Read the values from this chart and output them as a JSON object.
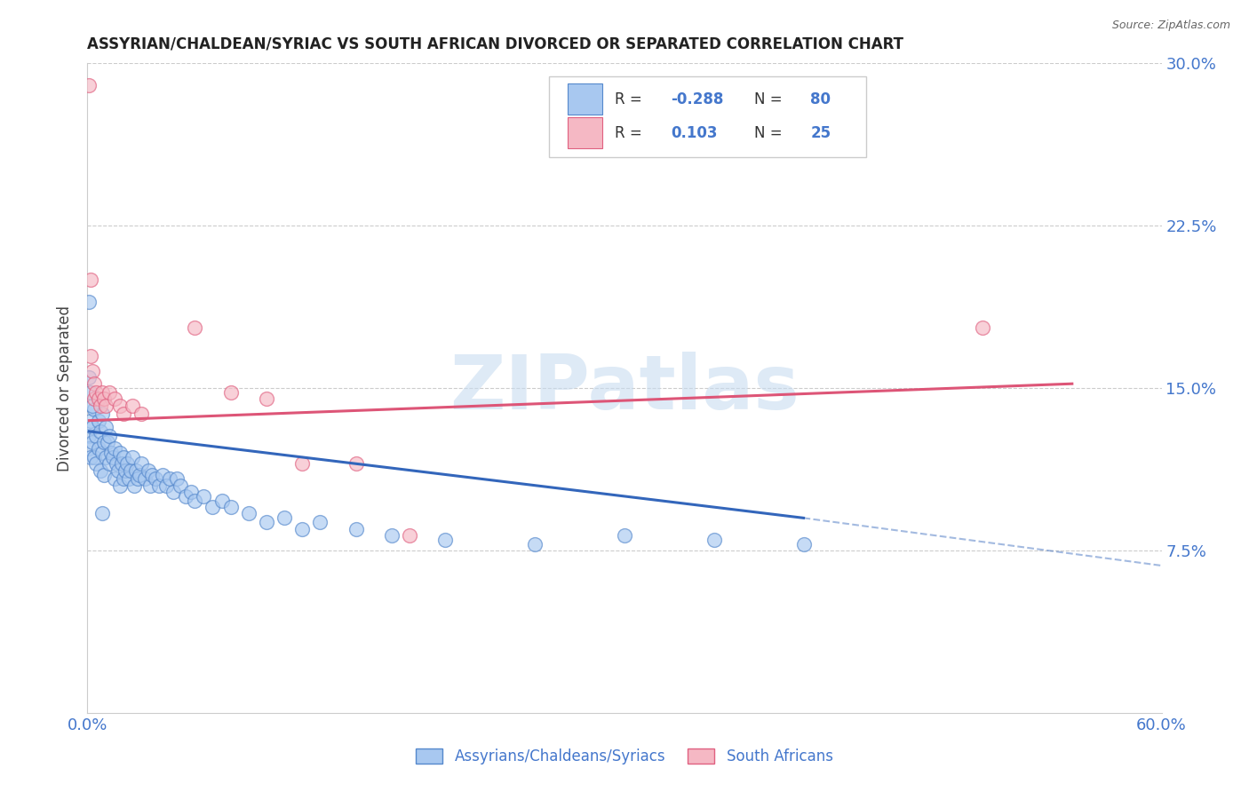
{
  "title": "ASSYRIAN/CHALDEAN/SYRIAC VS SOUTH AFRICAN DIVORCED OR SEPARATED CORRELATION CHART",
  "source": "Source: ZipAtlas.com",
  "ylabel": "Divorced or Separated",
  "xlim": [
    0.0,
    0.6
  ],
  "ylim": [
    0.0,
    0.3
  ],
  "xtick_vals": [
    0.0,
    0.6
  ],
  "xtick_labels": [
    "0.0%",
    "60.0%"
  ],
  "ytick_vals": [
    0.075,
    0.15,
    0.225,
    0.3
  ],
  "ytick_labels": [
    "7.5%",
    "15.0%",
    "22.5%",
    "30.0%"
  ],
  "legend_R1": "-0.288",
  "legend_N1": "80",
  "legend_R2": "0.103",
  "legend_N2": "25",
  "legend_label1": "Assyrians/Chaldeans/Syriacs",
  "legend_label2": "South Africans",
  "blue_color": "#A8C8F0",
  "pink_color": "#F5B8C4",
  "blue_edge_color": "#5588CC",
  "pink_edge_color": "#E06080",
  "blue_line_color": "#3366BB",
  "pink_line_color": "#DD5577",
  "watermark": "ZIPatlas",
  "blue_scatter": [
    [
      0.001,
      0.128
    ],
    [
      0.001,
      0.122
    ],
    [
      0.002,
      0.135
    ],
    [
      0.002,
      0.118
    ],
    [
      0.003,
      0.132
    ],
    [
      0.003,
      0.125
    ],
    [
      0.004,
      0.14
    ],
    [
      0.004,
      0.118
    ],
    [
      0.005,
      0.128
    ],
    [
      0.005,
      0.115
    ],
    [
      0.006,
      0.135
    ],
    [
      0.006,
      0.122
    ],
    [
      0.007,
      0.13
    ],
    [
      0.007,
      0.112
    ],
    [
      0.008,
      0.138
    ],
    [
      0.008,
      0.12
    ],
    [
      0.009,
      0.125
    ],
    [
      0.009,
      0.11
    ],
    [
      0.01,
      0.132
    ],
    [
      0.01,
      0.118
    ],
    [
      0.011,
      0.125
    ],
    [
      0.012,
      0.128
    ],
    [
      0.012,
      0.115
    ],
    [
      0.013,
      0.12
    ],
    [
      0.014,
      0.118
    ],
    [
      0.015,
      0.122
    ],
    [
      0.015,
      0.108
    ],
    [
      0.016,
      0.115
    ],
    [
      0.017,
      0.112
    ],
    [
      0.018,
      0.12
    ],
    [
      0.018,
      0.105
    ],
    [
      0.019,
      0.115
    ],
    [
      0.02,
      0.118
    ],
    [
      0.02,
      0.108
    ],
    [
      0.021,
      0.112
    ],
    [
      0.022,
      0.115
    ],
    [
      0.023,
      0.108
    ],
    [
      0.024,
      0.112
    ],
    [
      0.025,
      0.118
    ],
    [
      0.026,
      0.105
    ],
    [
      0.027,
      0.112
    ],
    [
      0.028,
      0.108
    ],
    [
      0.029,
      0.11
    ],
    [
      0.03,
      0.115
    ],
    [
      0.032,
      0.108
    ],
    [
      0.034,
      0.112
    ],
    [
      0.035,
      0.105
    ],
    [
      0.036,
      0.11
    ],
    [
      0.038,
      0.108
    ],
    [
      0.04,
      0.105
    ],
    [
      0.042,
      0.11
    ],
    [
      0.044,
      0.105
    ],
    [
      0.046,
      0.108
    ],
    [
      0.048,
      0.102
    ],
    [
      0.05,
      0.108
    ],
    [
      0.052,
      0.105
    ],
    [
      0.055,
      0.1
    ],
    [
      0.058,
      0.102
    ],
    [
      0.06,
      0.098
    ],
    [
      0.065,
      0.1
    ],
    [
      0.07,
      0.095
    ],
    [
      0.075,
      0.098
    ],
    [
      0.08,
      0.095
    ],
    [
      0.09,
      0.092
    ],
    [
      0.1,
      0.088
    ],
    [
      0.11,
      0.09
    ],
    [
      0.12,
      0.085
    ],
    [
      0.13,
      0.088
    ],
    [
      0.15,
      0.085
    ],
    [
      0.17,
      0.082
    ],
    [
      0.2,
      0.08
    ],
    [
      0.25,
      0.078
    ],
    [
      0.3,
      0.082
    ],
    [
      0.35,
      0.08
    ],
    [
      0.4,
      0.078
    ],
    [
      0.001,
      0.19
    ],
    [
      0.001,
      0.155
    ],
    [
      0.002,
      0.148
    ],
    [
      0.003,
      0.142
    ],
    [
      0.008,
      0.092
    ]
  ],
  "pink_scatter": [
    [
      0.001,
      0.29
    ],
    [
      0.002,
      0.2
    ],
    [
      0.002,
      0.165
    ],
    [
      0.003,
      0.158
    ],
    [
      0.004,
      0.152
    ],
    [
      0.004,
      0.145
    ],
    [
      0.005,
      0.148
    ],
    [
      0.006,
      0.145
    ],
    [
      0.007,
      0.142
    ],
    [
      0.008,
      0.148
    ],
    [
      0.009,
      0.145
    ],
    [
      0.01,
      0.142
    ],
    [
      0.012,
      0.148
    ],
    [
      0.015,
      0.145
    ],
    [
      0.018,
      0.142
    ],
    [
      0.02,
      0.138
    ],
    [
      0.025,
      0.142
    ],
    [
      0.03,
      0.138
    ],
    [
      0.06,
      0.178
    ],
    [
      0.08,
      0.148
    ],
    [
      0.1,
      0.145
    ],
    [
      0.12,
      0.115
    ],
    [
      0.15,
      0.115
    ],
    [
      0.18,
      0.082
    ],
    [
      0.5,
      0.178
    ]
  ],
  "blue_trend": [
    0.001,
    0.13,
    0.4,
    0.09
  ],
  "blue_dash": [
    0.4,
    0.09,
    0.6,
    0.068
  ],
  "pink_trend": [
    0.001,
    0.135,
    0.55,
    0.152
  ]
}
